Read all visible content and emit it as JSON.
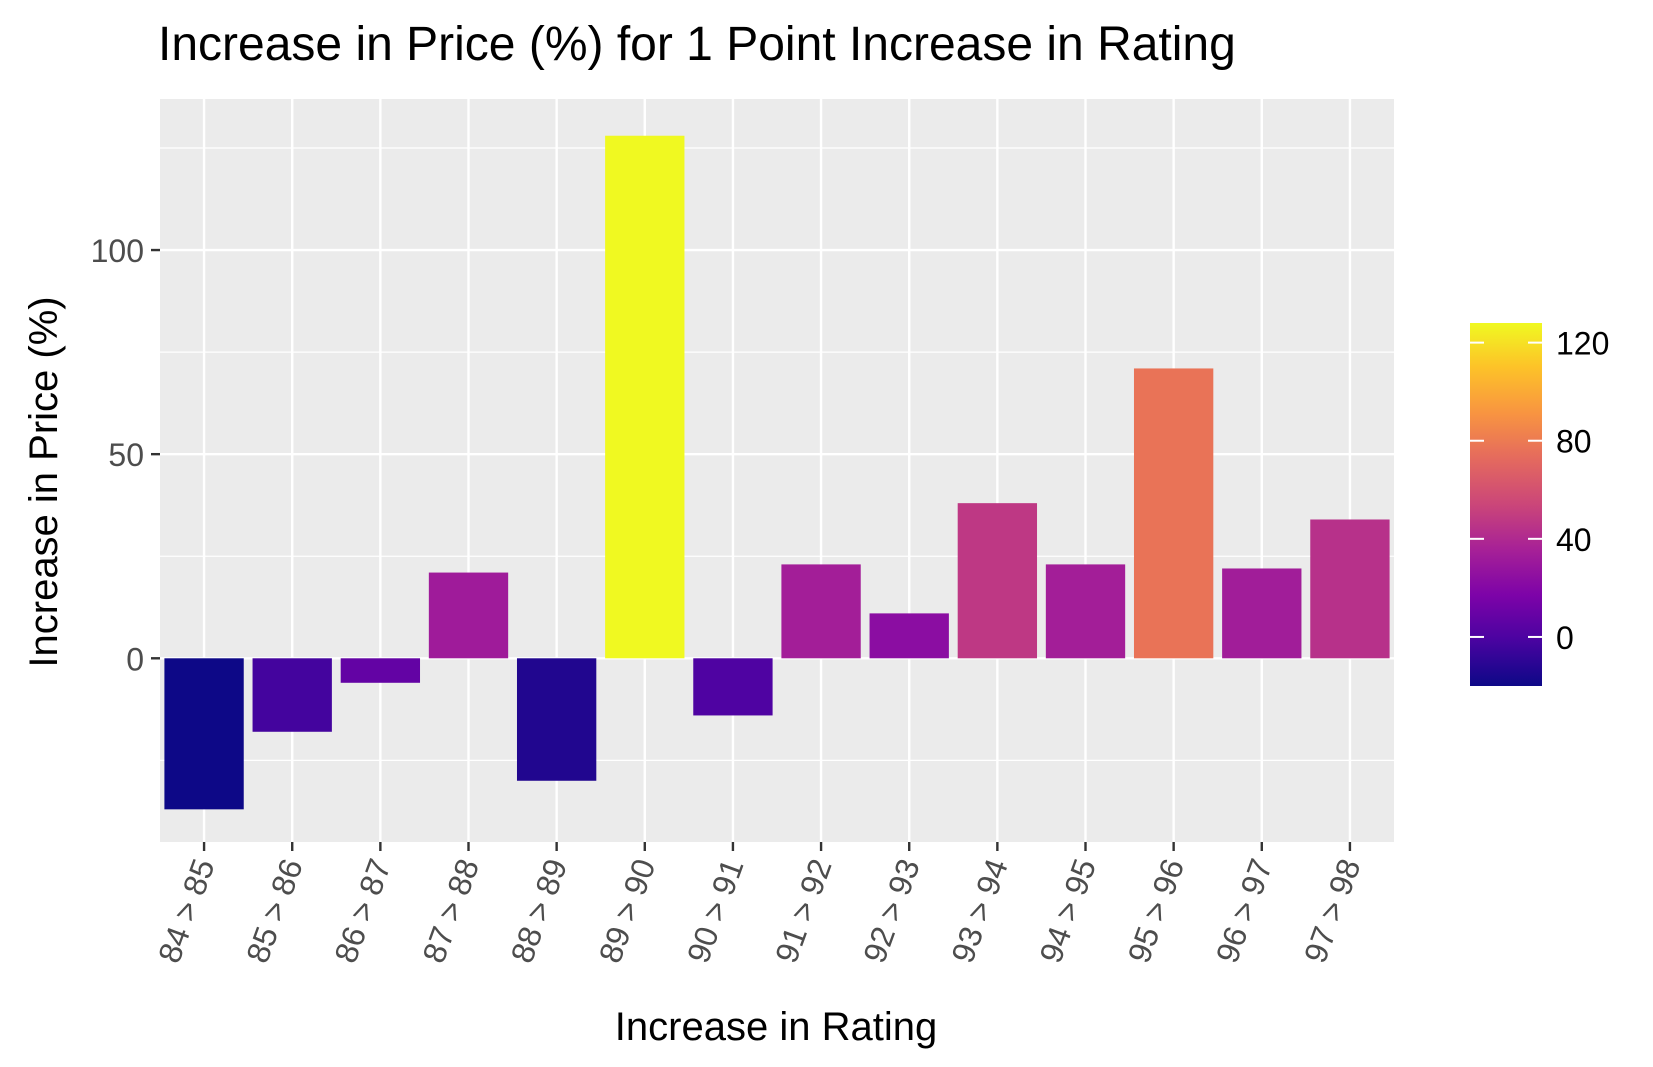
{
  "chart_data": {
    "type": "bar",
    "title": "Increase in Price (%) for 1 Point Increase in Rating",
    "xlabel": "Increase in Rating",
    "ylabel": "Increase in Price (%)",
    "categories": [
      "84 > 85",
      "85 > 86",
      "86 > 87",
      "87 > 88",
      "88 > 89",
      "89 > 90",
      "90 > 91",
      "91 > 92",
      "92 > 93",
      "93 > 94",
      "94 > 95",
      "95 > 96",
      "96 > 97",
      "97 > 98"
    ],
    "values": [
      -37,
      -18,
      -6,
      21,
      -30,
      128,
      -14,
      23,
      11,
      38,
      23,
      71,
      22,
      34
    ],
    "ylim": [
      -45,
      137
    ],
    "yticks": [
      0,
      50,
      100
    ],
    "grid": true,
    "legend": {
      "type": "colorbar",
      "placement": "right",
      "range": [
        -20,
        128
      ],
      "ticks": [
        0,
        40,
        80,
        120
      ],
      "palette": "plasma"
    },
    "colors": {
      "panel_background": "#EBEBEB",
      "grid": "#FFFFFF",
      "text": "#000000",
      "tick_text": "#4D4D4D"
    }
  }
}
